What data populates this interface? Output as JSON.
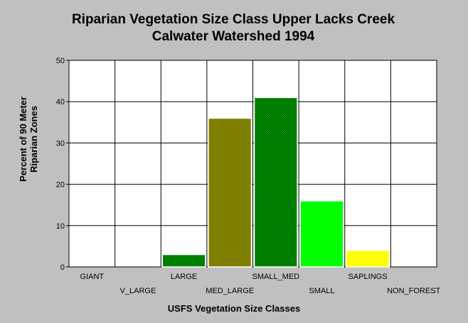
{
  "chart_data": {
    "type": "bar",
    "title_line1": "Riparian Vegetation Size Class Upper Lacks Creek",
    "title_line2": "Calwater Watershed 1994",
    "xlabel": "USFS Vegetation Size Classes",
    "ylabel_line1": "Percent of 90 Meter",
    "ylabel_line2": "Riparian Zones",
    "categories": [
      "GIANT",
      "V_LARGE",
      "LARGE",
      "MED_LARGE",
      "SMALL_MED",
      "SMALL",
      "SAPLINGS",
      "NON_FOREST"
    ],
    "values": [
      0,
      0,
      3,
      36,
      41,
      16,
      4,
      0
    ],
    "bar_colors": [
      "#008000",
      "#008000",
      "#008000",
      "#808000",
      "#008000",
      "#00ff00",
      "#ffff00",
      "#008000"
    ],
    "hatched": [
      false,
      false,
      false,
      false,
      true,
      false,
      false,
      false
    ],
    "ylim": [
      0,
      50
    ],
    "yticks": [
      0,
      10,
      20,
      30,
      40,
      50
    ],
    "grid": true,
    "legend": "none"
  }
}
